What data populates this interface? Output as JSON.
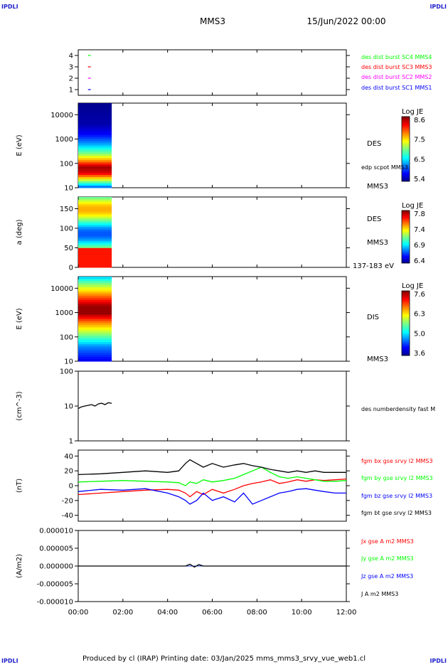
{
  "corners": {
    "tl": "IPDLI",
    "tr": "IPDLI",
    "bl": "IPDLI",
    "br": "IPDLI"
  },
  "header": {
    "spacecraft": "MMS3",
    "date": "15/Jun/2022 00:00"
  },
  "footer": {
    "text": "Produced by cl (IRAP)   Printing date: 03/Jan/2025   mms_mms3_srvy_vue_web1.cl"
  },
  "time_axis": {
    "ticks": [
      "00:00",
      "02:00",
      "04:00",
      "06:00",
      "08:00",
      "10:00",
      "12:00"
    ]
  },
  "colors": {
    "blue": "#0000ff",
    "red": "#ff0000",
    "green": "#00ff00",
    "magenta": "#ff00ff",
    "black": "#000000"
  },
  "chart_data": [
    {
      "id": "availability",
      "type": "scatter",
      "yticks": [
        "4",
        "3",
        "2",
        "1"
      ],
      "ylim": [
        0.5,
        4.5
      ],
      "xlim": [
        0,
        12
      ],
      "series": [
        {
          "name": "des dist burst SC1 MMS1",
          "y": 1,
          "x_hours": [
            0.5
          ],
          "color": "#0000ff"
        },
        {
          "name": "des dist burst SC2 MMS2",
          "y": 2,
          "x_hours": [
            0.5
          ],
          "color": "#ff00ff"
        },
        {
          "name": "des dist burst SC3 MMS3",
          "y": 3,
          "x_hours": [
            0.5
          ],
          "color": "#ff0000"
        },
        {
          "name": "des dist burst SC4 MMS4",
          "y": 4,
          "x_hours": [
            0.5
          ],
          "color": "#00ff00"
        }
      ]
    },
    {
      "id": "des-energy",
      "type": "heatmap",
      "ylabel": "E (eV)",
      "yticks": [
        "10000",
        "1000",
        "100",
        "10"
      ],
      "log_y": true,
      "ylim": [
        10,
        30000
      ],
      "xlim": [
        0,
        12
      ],
      "data_range_hours": [
        0,
        1.5
      ],
      "right_labels": [
        "DES",
        "edp scpot MMS3",
        "MMS3"
      ],
      "colorbar": {
        "title": "Log JE",
        "ticks": [
          "8.6",
          "7.5",
          "6.5",
          "5.4"
        ],
        "range": [
          5.4,
          8.6
        ]
      },
      "profile": [
        {
          "E": 10,
          "v": 6.0
        },
        {
          "E": 20,
          "v": 7.2
        },
        {
          "E": 40,
          "v": 8.3
        },
        {
          "E": 70,
          "v": 8.5
        },
        {
          "E": 120,
          "v": 7.8
        },
        {
          "E": 250,
          "v": 7.0
        },
        {
          "E": 600,
          "v": 6.3
        },
        {
          "E": 1500,
          "v": 5.8
        },
        {
          "E": 4000,
          "v": 5.5
        },
        {
          "E": 30000,
          "v": 5.4
        }
      ]
    },
    {
      "id": "des-pitch",
      "type": "heatmap",
      "ylabel": "a (deg)",
      "yticks": [
        "150",
        "100",
        "50",
        "0"
      ],
      "ylim": [
        0,
        180
      ],
      "xlim": [
        0,
        12
      ],
      "data_range_hours": [
        0,
        1.5
      ],
      "right_labels": [
        "DES",
        "MMS3",
        "137-183 eV"
      ],
      "colorbar": {
        "title": "Log JE",
        "ticks": [
          "7.8",
          "7.4",
          "6.9",
          "6.4"
        ],
        "range": [
          6.4,
          7.8
        ]
      }
    },
    {
      "id": "dis-energy",
      "type": "heatmap",
      "ylabel": "E (eV)",
      "yticks": [
        "10000",
        "1000",
        "100",
        "10"
      ],
      "log_y": true,
      "ylim": [
        10,
        30000
      ],
      "xlim": [
        0,
        12
      ],
      "data_range_hours": [
        0,
        1.5
      ],
      "right_labels": [
        "DIS",
        "MMS3"
      ],
      "colorbar": {
        "title": "Log JE",
        "ticks": [
          "7.6",
          "6.3",
          "5.0",
          "3.6"
        ],
        "range": [
          3.6,
          7.6
        ]
      },
      "profile": [
        {
          "E": 10,
          "v": 4.0
        },
        {
          "E": 40,
          "v": 4.6
        },
        {
          "E": 120,
          "v": 5.6
        },
        {
          "E": 400,
          "v": 6.6
        },
        {
          "E": 900,
          "v": 7.5
        },
        {
          "E": 1800,
          "v": 7.5
        },
        {
          "E": 5000,
          "v": 6.6
        },
        {
          "E": 15000,
          "v": 5.6
        },
        {
          "E": 30000,
          "v": 4.8
        }
      ]
    },
    {
      "id": "density",
      "type": "line",
      "ylabel": "(cm^-3)",
      "yticks": [
        "100",
        "10",
        "1"
      ],
      "log_y": true,
      "ylim": [
        1,
        100
      ],
      "xlim": [
        0,
        12
      ],
      "series": [
        {
          "name": "des numberdensity fast M",
          "color": "#000000",
          "x": [
            0.0,
            0.15,
            0.3,
            0.45,
            0.6,
            0.75,
            0.9,
            1.05,
            1.2,
            1.35,
            1.5
          ],
          "y": [
            8.5,
            9.5,
            10.0,
            10.5,
            11.0,
            10.0,
            11.5,
            12.0,
            11.0,
            12.5,
            12.0
          ]
        }
      ]
    },
    {
      "id": "magnetic-field",
      "type": "line",
      "ylabel": "(nT)",
      "yticks": [
        "40",
        "20",
        "0",
        "-20",
        "-40"
      ],
      "ylim": [
        -48,
        48
      ],
      "xlim": [
        0,
        12
      ],
      "series": [
        {
          "name": "fgm bx gse srvy l2 MMS3",
          "color": "#ff0000",
          "x": [
            0,
            1,
            2,
            3,
            4,
            4.5,
            4.8,
            5.0,
            5.3,
            5.6,
            6.0,
            6.5,
            7.0,
            7.4,
            7.8,
            8.2,
            8.6,
            9.0,
            9.4,
            9.8,
            10.2,
            10.6,
            11.0,
            11.5,
            12.0
          ],
          "y": [
            -12,
            -10,
            -8,
            -6,
            -5,
            -6,
            -10,
            -15,
            -8,
            -12,
            -5,
            -10,
            -5,
            0,
            3,
            5,
            8,
            3,
            5,
            8,
            6,
            8,
            7,
            8,
            9
          ]
        },
        {
          "name": "fgm by gse srvy l2 MMS3",
          "color": "#00ff00",
          "x": [
            0,
            1,
            2,
            3,
            4,
            4.5,
            4.8,
            5.0,
            5.3,
            5.6,
            6.0,
            6.5,
            7.0,
            7.4,
            7.8,
            8.2,
            8.6,
            9.0,
            9.4,
            9.8,
            10.2,
            10.6,
            11.0,
            11.5,
            12.0
          ],
          "y": [
            5,
            6,
            7,
            6,
            5,
            4,
            0,
            5,
            3,
            8,
            5,
            7,
            10,
            15,
            20,
            25,
            18,
            12,
            10,
            12,
            10,
            8,
            6,
            6,
            7
          ]
        },
        {
          "name": "fgm bz gse srvy l2 MMS3",
          "color": "#0000ff",
          "x": [
            0,
            1,
            2,
            3,
            4,
            4.5,
            4.8,
            5.0,
            5.3,
            5.6,
            6.0,
            6.5,
            7.0,
            7.4,
            7.8,
            8.2,
            8.6,
            9.0,
            9.4,
            9.8,
            10.2,
            10.6,
            11.0,
            11.5,
            12.0
          ],
          "y": [
            -8,
            -5,
            -6,
            -4,
            -10,
            -15,
            -20,
            -25,
            -20,
            -10,
            -20,
            -15,
            -22,
            -10,
            -25,
            -20,
            -15,
            -10,
            -8,
            -5,
            -4,
            -6,
            -8,
            -10,
            -10
          ]
        },
        {
          "name": "fgm bt gse srvy l2 MMS3",
          "color": "#000000",
          "x": [
            0,
            1,
            2,
            3,
            4,
            4.5,
            4.8,
            5.0,
            5.3,
            5.6,
            6.0,
            6.5,
            7.0,
            7.4,
            7.8,
            8.2,
            8.6,
            9.0,
            9.4,
            9.8,
            10.2,
            10.6,
            11.0,
            11.5,
            12.0
          ],
          "y": [
            15,
            16,
            18,
            20,
            18,
            20,
            30,
            35,
            30,
            25,
            30,
            25,
            28,
            30,
            27,
            25,
            22,
            20,
            18,
            20,
            18,
            20,
            18,
            18,
            18
          ]
        }
      ]
    },
    {
      "id": "current-density",
      "type": "line",
      "ylabel": "(A/m2)",
      "yticks": [
        "0.000010",
        "0.000005",
        "0.000000",
        "-0.000005",
        "-0.000010"
      ],
      "ylim": [
        -1e-05,
        1e-05
      ],
      "xlim": [
        0,
        12
      ],
      "series": [
        {
          "name": "Jx gse A m2 MMS3",
          "color": "#ff0000",
          "x": [
            0,
            12
          ],
          "y": [
            0,
            0
          ]
        },
        {
          "name": "Jy gse A m2 MMS3",
          "color": "#00ff00",
          "x": [
            0,
            12
          ],
          "y": [
            0,
            0
          ]
        },
        {
          "name": "Jz gse A m2 MMS3",
          "color": "#0000ff",
          "x": [
            0,
            12
          ],
          "y": [
            0,
            0
          ]
        },
        {
          "name": "J A m2 MMS3",
          "color": "#000000",
          "x": [
            0,
            4.8,
            5.0,
            5.2,
            5.4,
            5.6,
            12
          ],
          "y": [
            0,
            0,
            5e-07,
            -3e-07,
            4e-07,
            0,
            0
          ]
        }
      ]
    }
  ]
}
